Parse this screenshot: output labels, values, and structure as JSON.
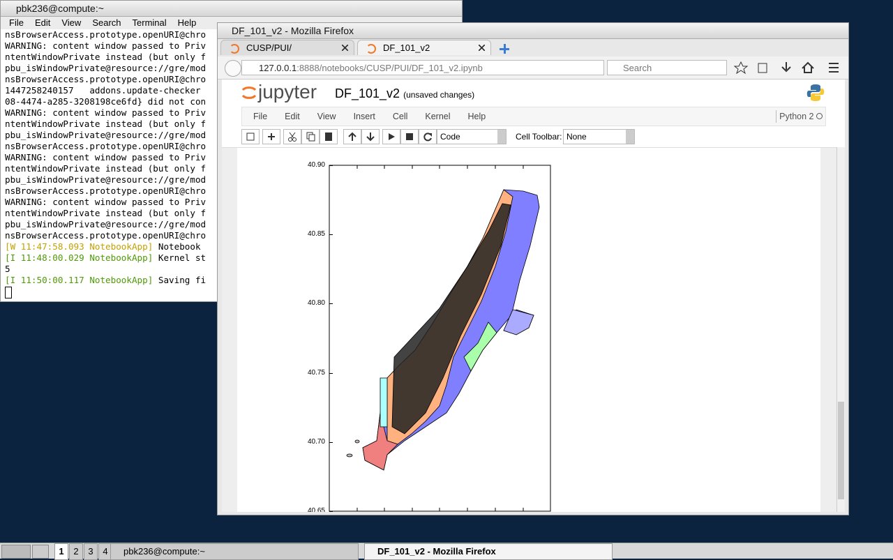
{
  "terminal": {
    "title": "pbk236@compute:~",
    "menu": [
      "File",
      "Edit",
      "View",
      "Search",
      "Terminal",
      "Help"
    ],
    "lines": [
      {
        "text": "nsBrowserAccess.prototype.openURI@chro"
      },
      {
        "text": "WARNING: content window passed to Priv"
      },
      {
        "text": "ntentWindowPrivate instead (but only f"
      },
      {
        "text": "pbu_isWindowPrivate@resource://gre/mod"
      },
      {
        "text": "nsBrowserAccess.prototype.openURI@chro"
      },
      {
        "text": "1447258240157   addons.update-checker "
      },
      {
        "text": "08-4474-a285-3208198ce6fd} did not con"
      },
      {
        "text": "WARNING: content window passed to Priv"
      },
      {
        "text": "ntentWindowPrivate instead (but only f"
      },
      {
        "text": "pbu_isWindowPrivate@resource://gre/mod"
      },
      {
        "text": "nsBrowserAccess.prototype.openURI@chro"
      },
      {
        "text": "WARNING: content window passed to Priv"
      },
      {
        "text": "ntentWindowPrivate instead (but only f"
      },
      {
        "text": "pbu_isWindowPrivate@resource://gre/mod"
      },
      {
        "text": "nsBrowserAccess.prototype.openURI@chro"
      },
      {
        "text": "WARNING: content window passed to Priv"
      },
      {
        "text": "ntentWindowPrivate instead (but only f"
      },
      {
        "text": "pbu_isWindowPrivate@resource://gre/mod"
      },
      {
        "text": "nsBrowserAccess.prototype.openURI@chro"
      },
      {
        "tag": "[W 11:47:58.093 NotebookApp]",
        "level": "warn",
        "text": " Notebook "
      },
      {
        "tag": "[I 11:48:00.029 NotebookApp]",
        "level": "info",
        "text": " Kernel st"
      },
      {
        "text": "5"
      },
      {
        "tag": "[I 11:50:00.117 NotebookApp]",
        "level": "info",
        "text": " Saving fi"
      }
    ]
  },
  "firefox": {
    "title": "DF_101_v2 - Mozilla Firefox",
    "tabs": [
      "CUSP/PUI/",
      "DF_101_v2"
    ],
    "url_host": "127.0.0.1",
    "url_path": ":8888/notebooks/CUSP/PUI/DF_101_v2.ipynb",
    "search_placeholder": "Search"
  },
  "jupyter": {
    "logo": "jupyter",
    "notebook_name": "DF_101_v2",
    "status": "(unsaved changes)",
    "menu": [
      "File",
      "Edit",
      "View",
      "Insert",
      "Cell",
      "Kernel",
      "Help"
    ],
    "kernel": "Python 2",
    "cell_type": "Code",
    "cell_toolbar_label": "Cell Toolbar:",
    "cell_toolbar_value": "None"
  },
  "plot": {
    "yticks": [
      "40.90",
      "40.85",
      "40.80",
      "40.75",
      "40.70",
      "40.65"
    ]
  },
  "taskbar": {
    "workspaces": [
      "1",
      "2",
      "3",
      "4"
    ],
    "tasks": [
      "pbk236@compute:~",
      "DF_101_v2 - Mozilla Firefox"
    ]
  }
}
